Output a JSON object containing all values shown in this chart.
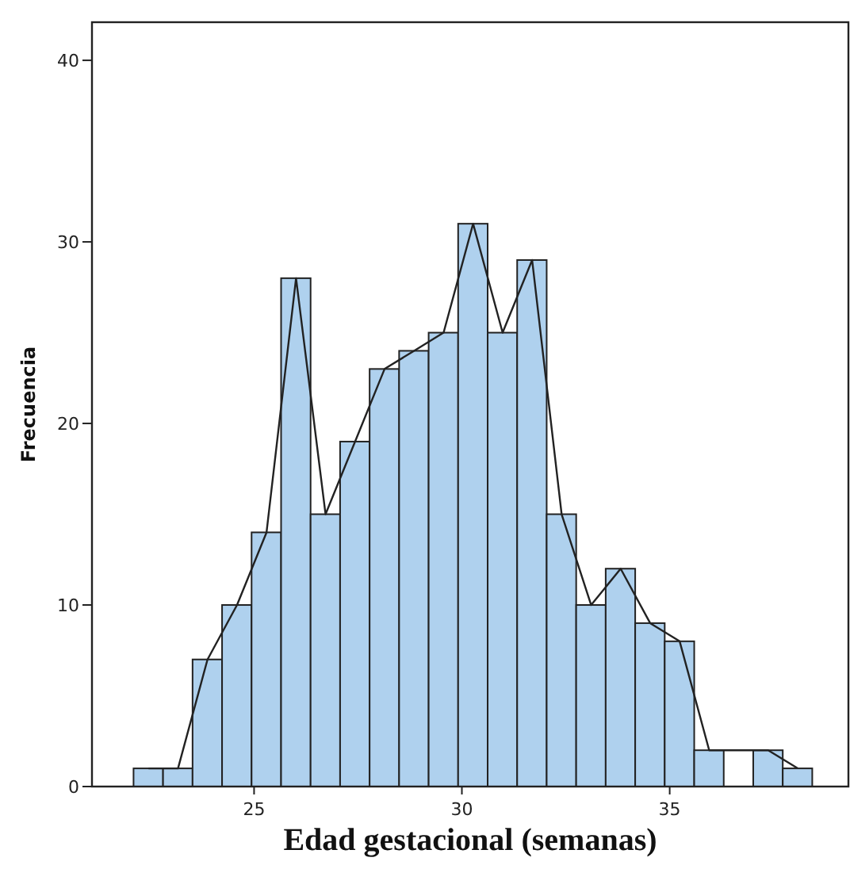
{
  "chart_data": {
    "type": "histogram",
    "xlabel": "Edad gestacional (semanas)",
    "ylabel": "Frecuencia",
    "bins": [
      22.1,
      22.81,
      23.52,
      24.23,
      24.94,
      25.65,
      26.36,
      27.07,
      27.78,
      28.49,
      29.2,
      29.91,
      30.62,
      31.33,
      32.04,
      32.75,
      33.46,
      34.17,
      34.88,
      35.59,
      36.3,
      37.01,
      37.72,
      38.43
    ],
    "values": [
      1,
      1,
      7,
      10,
      14,
      28,
      15,
      19,
      23,
      24,
      25,
      31,
      25,
      29,
      15,
      10,
      12,
      9,
      8,
      2,
      0,
      2,
      1
    ],
    "color": "#afd1ee",
    "series": [
      {
        "type": "line",
        "color": "#222222",
        "x": [
          22.46,
          23.17,
          23.88,
          24.59,
          25.3,
          26.01,
          26.72,
          27.43,
          28.14,
          28.85,
          29.56,
          30.27,
          30.98,
          31.69,
          32.4,
          33.11,
          33.82,
          34.53,
          35.24,
          35.95,
          37.37,
          38.08
        ],
        "values": [
          1,
          1,
          7,
          10,
          14,
          28,
          15,
          19,
          23,
          24,
          25,
          31,
          25,
          29,
          15,
          10,
          12,
          9,
          8,
          2,
          2,
          1
        ]
      }
    ],
    "xlim": [
      21.1,
      39.3
    ],
    "ylim": [
      0,
      42.1
    ],
    "xticks": [
      25,
      30,
      35
    ],
    "yticks": [
      0,
      10,
      20,
      30,
      40
    ]
  }
}
